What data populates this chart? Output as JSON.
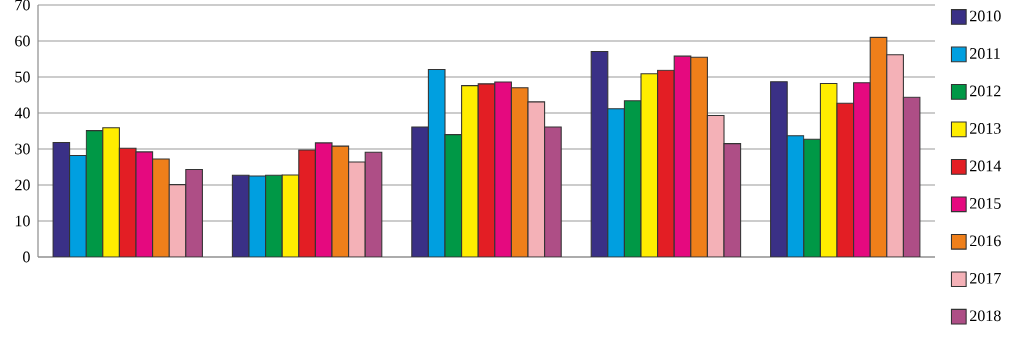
{
  "chart_data": {
    "type": "bar",
    "categories": [
      null,
      null,
      null,
      null,
      null
    ],
    "ylim": [
      0,
      70
    ],
    "yticks": [
      0,
      10,
      20,
      30,
      40,
      50,
      60,
      70
    ],
    "grid": "y",
    "legend": "right",
    "series": [
      {
        "name": "2010",
        "color": "#3a3086",
        "values": [
          31.8,
          22.7,
          36.1,
          57.1,
          48.7
        ]
      },
      {
        "name": "2011",
        "color": "#009fe0",
        "values": [
          28.2,
          22.5,
          52.1,
          41.2,
          33.7
        ]
      },
      {
        "name": "2012",
        "color": "#009846",
        "values": [
          35.1,
          22.7,
          34.0,
          43.4,
          32.7
        ]
      },
      {
        "name": "2013",
        "color": "#ffed00",
        "values": [
          35.9,
          22.8,
          47.6,
          50.9,
          48.2
        ]
      },
      {
        "name": "2014",
        "color": "#e31e24",
        "values": [
          30.2,
          29.7,
          48.1,
          51.9,
          42.7
        ]
      },
      {
        "name": "2015",
        "color": "#e5097f",
        "values": [
          29.2,
          31.7,
          48.6,
          55.8,
          48.4
        ]
      },
      {
        "name": "2016",
        "color": "#ef7f1a",
        "values": [
          27.2,
          30.8,
          47.0,
          55.5,
          61.0
        ]
      },
      {
        "name": "2017",
        "color": "#f4b1b7",
        "values": [
          20.1,
          26.4,
          43.1,
          39.3,
          56.2
        ]
      },
      {
        "name": "2018",
        "color": "#ae4e86",
        "values": [
          24.3,
          29.1,
          36.1,
          31.5,
          44.4
        ]
      }
    ]
  }
}
